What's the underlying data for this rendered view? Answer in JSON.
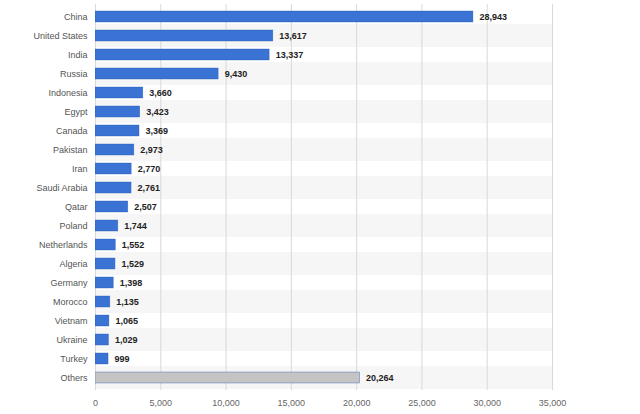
{
  "chart_data": {
    "type": "bar",
    "orientation": "horizontal",
    "categories": [
      "China",
      "United States",
      "India",
      "Russia",
      "Indonesia",
      "Egypt",
      "Canada",
      "Pakistan",
      "Iran",
      "Saudi Arabia",
      "Qatar",
      "Poland",
      "Netherlands",
      "Algeria",
      "Germany",
      "Morocco",
      "Vietnam",
      "Ukraine",
      "Turkey",
      "Others"
    ],
    "values": [
      28943,
      13617,
      13337,
      9430,
      3660,
      3423,
      3369,
      2973,
      2770,
      2761,
      2507,
      1744,
      1552,
      1529,
      1398,
      1135,
      1065,
      1029,
      999,
      20264
    ],
    "value_labels": [
      "28,943",
      "13,617",
      "13,337",
      "9,430",
      "3,660",
      "3,423",
      "3,369",
      "2,973",
      "2,770",
      "2,761",
      "2,507",
      "1,744",
      "1,552",
      "1,529",
      "1,398",
      "1,135",
      "1,065",
      "1,029",
      "999",
      "20,264"
    ],
    "colors": [
      "#3b73d4",
      "#3b73d4",
      "#3b73d4",
      "#3b73d4",
      "#3b73d4",
      "#3b73d4",
      "#3b73d4",
      "#3b73d4",
      "#3b73d4",
      "#3b73d4",
      "#3b73d4",
      "#3b73d4",
      "#3b73d4",
      "#3b73d4",
      "#3b73d4",
      "#3b73d4",
      "#3b73d4",
      "#3b73d4",
      "#3b73d4",
      "#c4c4c4"
    ],
    "xlim": [
      0,
      35000
    ],
    "xticks": [
      0,
      {
        "value": 5000,
        "label": "5,000"
      },
      {
        "value": 10000,
        "label": "10,000"
      },
      {
        "value": 15000,
        "label": "15,000"
      },
      {
        "value": 20000,
        "label": "20,000"
      },
      {
        "value": 25000,
        "label": "25,000"
      },
      {
        "value": 30000,
        "label": "30,000"
      },
      {
        "value": 35000,
        "label": "35,000"
      }
    ],
    "grid": true,
    "data_labels": true
  }
}
